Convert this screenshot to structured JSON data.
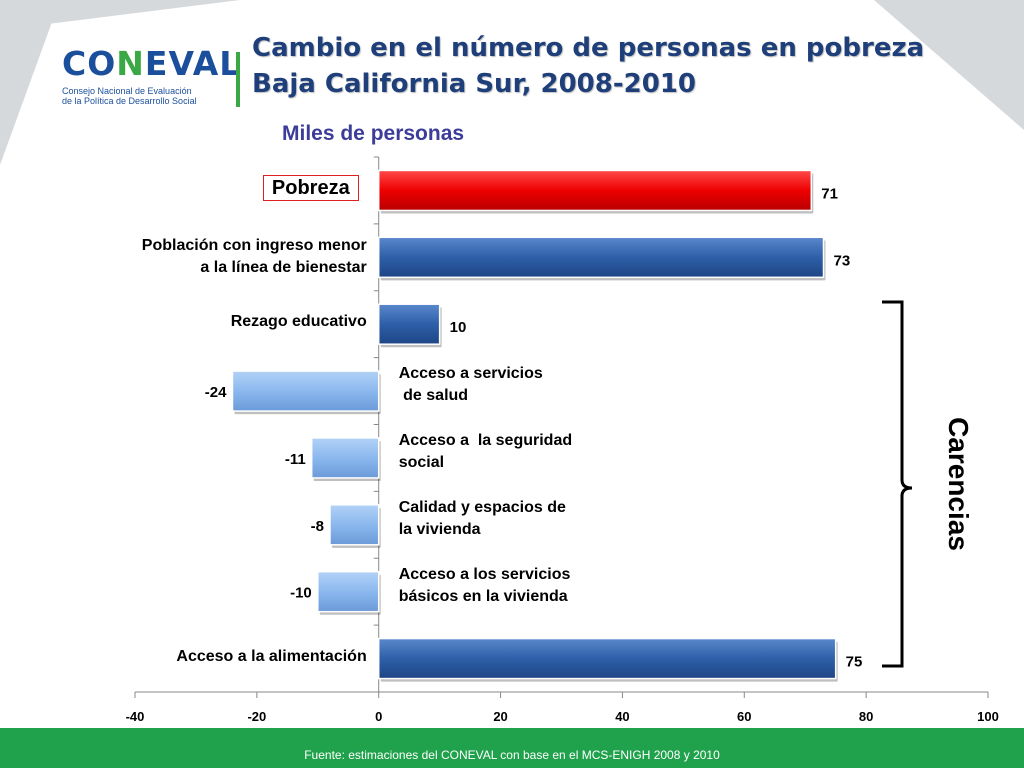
{
  "header": {
    "logo_text_a": "CO",
    "logo_text_b": "N",
    "logo_text_c": "EVAL",
    "logo_sub_1": "Consejo Nacional de Evaluación",
    "logo_sub_2": "de la Política de Desarrollo Social",
    "title_1": "Cambio en el número de personas en pobreza",
    "title_2": "Baja California Sur, 2008-2010",
    "subtitle": "Miles de personas"
  },
  "group_label": "Carencias",
  "footer": {
    "source": "Fuente: estimaciones del CONEVAL con base en el MCS-ENIGH 2008 y 2010"
  },
  "colors": {
    "red": "#ee0000",
    "dark_blue": "#2e5fa8",
    "light_blue": "#8bb8ee",
    "footer_green": "#1fa24b"
  },
  "chart_data": {
    "type": "bar",
    "orientation": "horizontal",
    "categories": [
      "Pobreza",
      "Población con ingreso menor a la línea de bienestar",
      "Rezago educativo",
      "Acceso a servicios de salud",
      "Acceso a la seguridad social",
      "Calidad y espacios de la vivienda",
      "Acceso a los servicios básicos en la vivienda",
      "Acceso a la alimentación"
    ],
    "label_lines": [
      [
        "Pobreza"
      ],
      [
        "Población con ingreso menor",
        "a la línea de bienestar"
      ],
      [
        "Rezago educativo"
      ],
      [
        "Acceso a servicios",
        " de salud"
      ],
      [
        "Acceso a  la seguridad",
        "social"
      ],
      [
        "Calidad y espacios de",
        "la vivienda"
      ],
      [
        "Acceso a los servicios",
        "básicos en la vivienda"
      ],
      [
        "Acceso a la alimentación"
      ]
    ],
    "values": [
      71,
      73,
      10,
      -24,
      -11,
      -8,
      -10,
      75
    ],
    "value_labels": [
      "71",
      "73",
      "10",
      "-24",
      "-11",
      "-8",
      "-10",
      "75"
    ],
    "bar_colors": [
      "red",
      "dark_blue",
      "dark_blue",
      "light_blue",
      "light_blue",
      "light_blue",
      "light_blue",
      "dark_blue"
    ],
    "xlim": [
      -40,
      100
    ],
    "xticks": [
      -40,
      -20,
      0,
      20,
      40,
      60,
      80,
      100
    ],
    "xtick_labels": [
      "-40",
      "-20",
      "0",
      "20",
      "40",
      "60",
      "80",
      "100"
    ],
    "grid": false
  }
}
